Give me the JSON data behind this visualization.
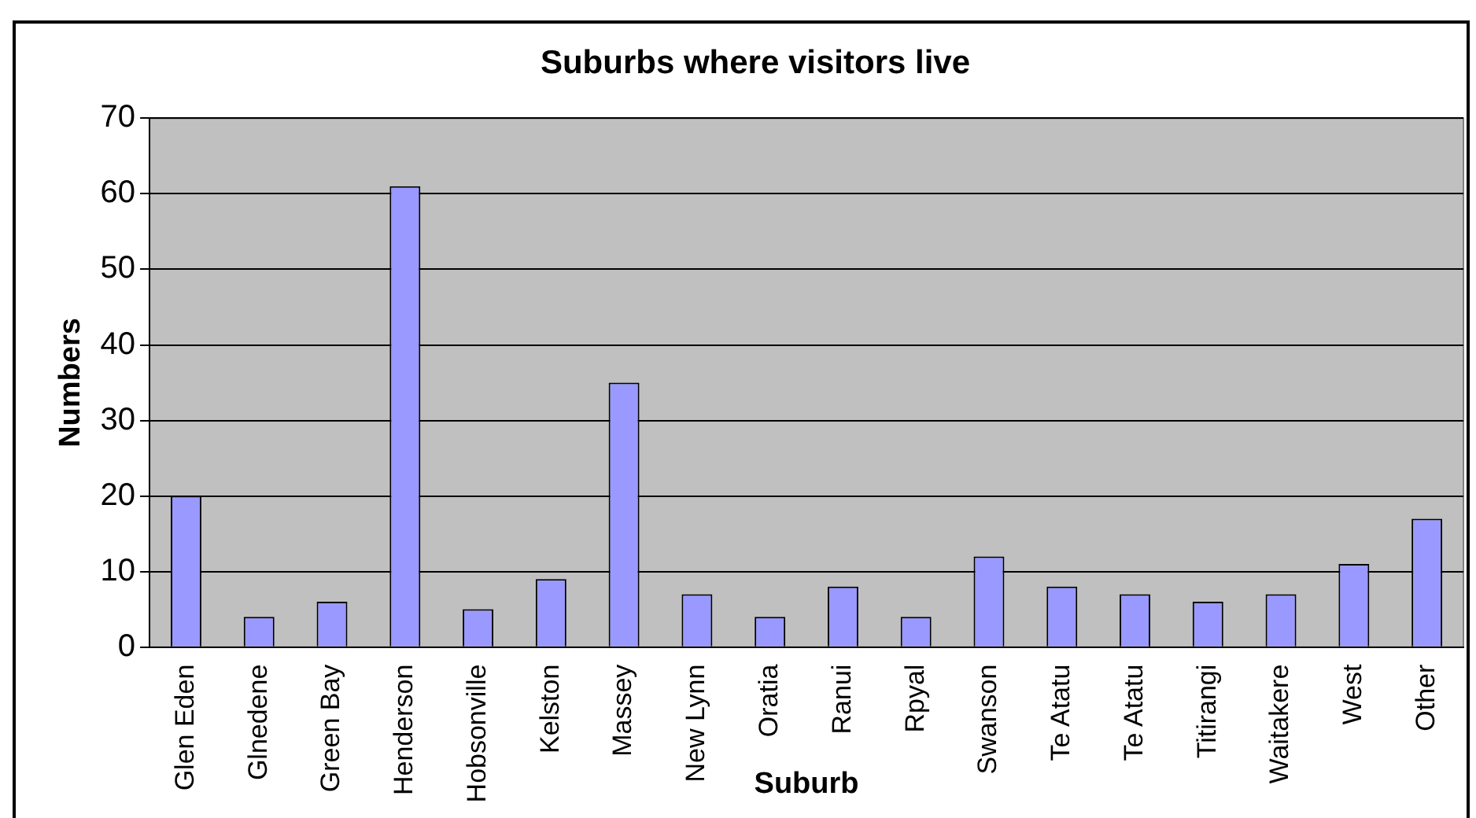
{
  "chart_data": {
    "type": "bar",
    "title": "Suburbs where visitors live",
    "xlabel": "Suburb",
    "ylabel": "Numbers",
    "categories": [
      "Glen Eden",
      "Glnedene",
      "Green Bay",
      "Henderson",
      "Hobsonville",
      "Kelston",
      "Massey",
      "New Lynn",
      "Oratia",
      "Ranui",
      "Rpyal",
      "Swanson",
      "Te Atatu",
      "Te Atatu",
      "Titirangi",
      "Waitakere",
      "West",
      "Other"
    ],
    "values": [
      20,
      4,
      6,
      61,
      5,
      9,
      35,
      7,
      4,
      8,
      4,
      12,
      8,
      7,
      6,
      7,
      11,
      17
    ],
    "color": "#9999ff",
    "ylim": [
      0,
      70
    ],
    "yticks": [
      0,
      10,
      20,
      30,
      40,
      50,
      60,
      70
    ],
    "grid": "y",
    "legend": false
  }
}
